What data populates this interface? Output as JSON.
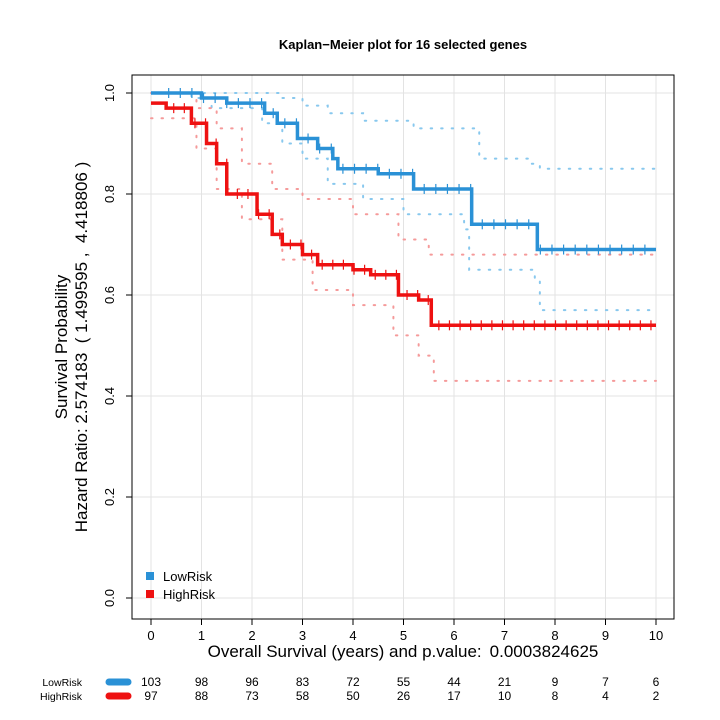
{
  "chart_data": {
    "type": "line",
    "title": "Kaplan−Meier plot for 16 selected genes",
    "xlabel_prefix": "Overall Survival (years) and p.value:",
    "p_value": "0.0003824625",
    "ylabel_line1": "Survival Probability",
    "ylabel_line2": "Hazard Ratio: 2.574183  ( 1.499595 ,  4.418806 )",
    "hazard_ratio": 2.574183,
    "hr_ci": [
      1.499595,
      4.418806
    ],
    "xlim": [
      0,
      10
    ],
    "ylim": [
      0,
      1
    ],
    "x_ticks": [
      "0",
      "1",
      "2",
      "3",
      "4",
      "5",
      "6",
      "7",
      "8",
      "9",
      "10"
    ],
    "y_ticks": [
      "0.0",
      "0.2",
      "0.4",
      "0.6",
      "0.8",
      "1.0"
    ],
    "grid": true,
    "legend_position": "bottom-left",
    "series": [
      {
        "name": "LowRisk",
        "color": "#2a91d6",
        "ci_color": "#88c8ee",
        "steps": [
          [
            0,
            1.0
          ],
          [
            1.0,
            0.99
          ],
          [
            1.5,
            0.98
          ],
          [
            2.25,
            0.96
          ],
          [
            2.5,
            0.94
          ],
          [
            2.9,
            0.91
          ],
          [
            3.3,
            0.89
          ],
          [
            3.6,
            0.87
          ],
          [
            3.7,
            0.87
          ],
          [
            3.7,
            0.85
          ],
          [
            4.5,
            0.84
          ],
          [
            5.2,
            0.81
          ],
          [
            6.35,
            0.81
          ],
          [
            6.35,
            0.74
          ],
          [
            7.65,
            0.74
          ],
          [
            7.65,
            0.69
          ],
          [
            10,
            0.69
          ]
        ],
        "upper": [
          [
            0,
            1.0
          ],
          [
            2.4,
            1.0
          ],
          [
            2.6,
            0.99
          ],
          [
            3.0,
            0.975
          ],
          [
            3.5,
            0.96
          ],
          [
            4.2,
            0.945
          ],
          [
            5.2,
            0.93
          ],
          [
            6.2,
            0.93
          ],
          [
            6.5,
            0.87
          ],
          [
            7.5,
            0.86
          ],
          [
            7.7,
            0.85
          ],
          [
            10,
            0.85
          ]
        ],
        "lower": [
          [
            0,
            1.0
          ],
          [
            0.8,
            0.99
          ],
          [
            1.2,
            0.97
          ],
          [
            2.2,
            0.94
          ],
          [
            2.6,
            0.9
          ],
          [
            3.0,
            0.87
          ],
          [
            3.5,
            0.82
          ],
          [
            4.2,
            0.79
          ],
          [
            5.0,
            0.76
          ],
          [
            6.2,
            0.73
          ],
          [
            6.3,
            0.65
          ],
          [
            7.6,
            0.63
          ],
          [
            7.7,
            0.57
          ],
          [
            10,
            0.57
          ]
        ],
        "risk": [
          "103",
          "98",
          "96",
          "83",
          "72",
          "55",
          "44",
          "21",
          "9",
          "7",
          "6"
        ]
      },
      {
        "name": "HighRisk",
        "color": "#ee1111",
        "ci_color": "#f59a9a",
        "steps": [
          [
            0,
            0.98
          ],
          [
            0.3,
            0.97
          ],
          [
            0.8,
            0.94
          ],
          [
            1.1,
            0.9
          ],
          [
            1.3,
            0.86
          ],
          [
            1.5,
            0.8
          ],
          [
            2.1,
            0.76
          ],
          [
            2.4,
            0.72
          ],
          [
            2.6,
            0.7
          ],
          [
            3.0,
            0.68
          ],
          [
            3.3,
            0.66
          ],
          [
            4.0,
            0.65
          ],
          [
            4.35,
            0.64
          ],
          [
            4.9,
            0.6
          ],
          [
            5.3,
            0.59
          ],
          [
            5.55,
            0.54
          ],
          [
            10,
            0.54
          ]
        ],
        "upper": [
          [
            0,
            1.0
          ],
          [
            0.9,
            0.97
          ],
          [
            1.3,
            0.93
          ],
          [
            1.8,
            0.86
          ],
          [
            2.4,
            0.81
          ],
          [
            3.0,
            0.79
          ],
          [
            4.0,
            0.76
          ],
          [
            4.9,
            0.71
          ],
          [
            5.5,
            0.68
          ],
          [
            10,
            0.68
          ]
        ],
        "lower": [
          [
            0,
            0.95
          ],
          [
            0.9,
            0.89
          ],
          [
            1.3,
            0.81
          ],
          [
            1.8,
            0.75
          ],
          [
            2.6,
            0.67
          ],
          [
            3.2,
            0.61
          ],
          [
            4.0,
            0.58
          ],
          [
            4.8,
            0.52
          ],
          [
            5.3,
            0.48
          ],
          [
            5.6,
            0.43
          ],
          [
            10,
            0.43
          ]
        ],
        "risk": [
          "97",
          "88",
          "73",
          "58",
          "50",
          "26",
          "17",
          "10",
          "8",
          "4",
          "2"
        ]
      }
    ]
  }
}
